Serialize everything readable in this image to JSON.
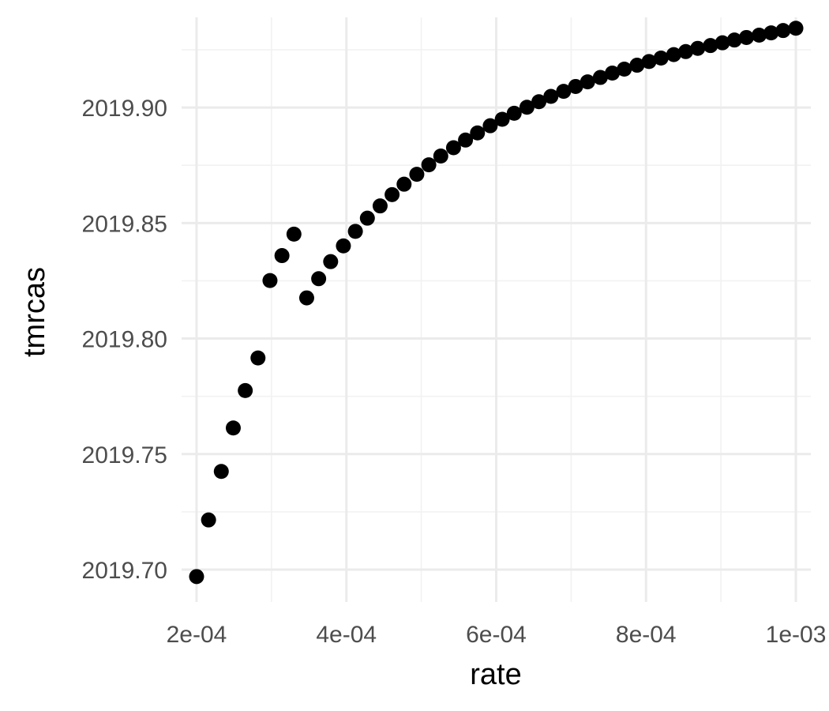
{
  "chart_data": {
    "type": "scatter",
    "title": "",
    "xlabel": "rate",
    "ylabel": "tmrcas",
    "xlim": [
      0.00018,
      0.00102
    ],
    "ylim": [
      2019.686,
      2019.939
    ],
    "x_ticks": [
      0.0002,
      0.0004,
      0.0006,
      0.0008,
      0.001
    ],
    "x_tick_labels": [
      "2e-04",
      "4e-04",
      "6e-04",
      "8e-04",
      "1e-03"
    ],
    "x_minor_ticks": [
      0.0003,
      0.0005,
      0.0007,
      0.0009
    ],
    "y_ticks": [
      2019.7,
      2019.75,
      2019.8,
      2019.85,
      2019.9
    ],
    "y_tick_labels": [
      "2019.70",
      "2019.75",
      "2019.80",
      "2019.85",
      "2019.90"
    ],
    "y_minor_ticks": [
      2019.725,
      2019.775,
      2019.825,
      2019.875,
      2019.925
    ],
    "grid": true,
    "point_color": "#000000",
    "series": [
      {
        "name": "tmrcas",
        "x": [
          0.0002,
          0.000216,
          0.000233,
          0.000249,
          0.000265,
          0.000282,
          0.000298,
          0.000314,
          0.00033,
          0.000347,
          0.000363,
          0.000379,
          0.000396,
          0.000412,
          0.000428,
          0.000445,
          0.000461,
          0.000477,
          0.000494,
          0.00051,
          0.000526,
          0.000543,
          0.000559,
          0.000575,
          0.000592,
          0.000608,
          0.000624,
          0.000641,
          0.000657,
          0.000673,
          0.00069,
          0.000706,
          0.000722,
          0.000739,
          0.000755,
          0.000771,
          0.000788,
          0.000804,
          0.00082,
          0.000837,
          0.000853,
          0.000869,
          0.000886,
          0.000902,
          0.000918,
          0.000934,
          0.000951,
          0.000967,
          0.000983,
          0.001
        ],
        "y": [
          2019.697,
          2019.7215,
          2019.7425,
          2019.7613,
          2019.7775,
          2019.7916,
          2019.8251,
          2019.8359,
          2019.8452,
          2019.8176,
          2019.8259,
          2019.8333,
          2019.8401,
          2019.8464,
          2019.8521,
          2019.8574,
          2019.8623,
          2019.8668,
          2019.8711,
          2019.8752,
          2019.879,
          2019.8826,
          2019.8859,
          2019.889,
          2019.8921,
          2019.8949,
          2019.8975,
          2019.9001,
          2019.9025,
          2019.9048,
          2019.907,
          2019.9091,
          2019.9111,
          2019.913,
          2019.9149,
          2019.9166,
          2019.9183,
          2019.9199,
          2019.9214,
          2019.9229,
          2019.9242,
          2019.9256,
          2019.9268,
          2019.928,
          2019.9292,
          2019.9303,
          2019.9313,
          2019.9323,
          2019.9333,
          2019.9343
        ]
      }
    ]
  }
}
